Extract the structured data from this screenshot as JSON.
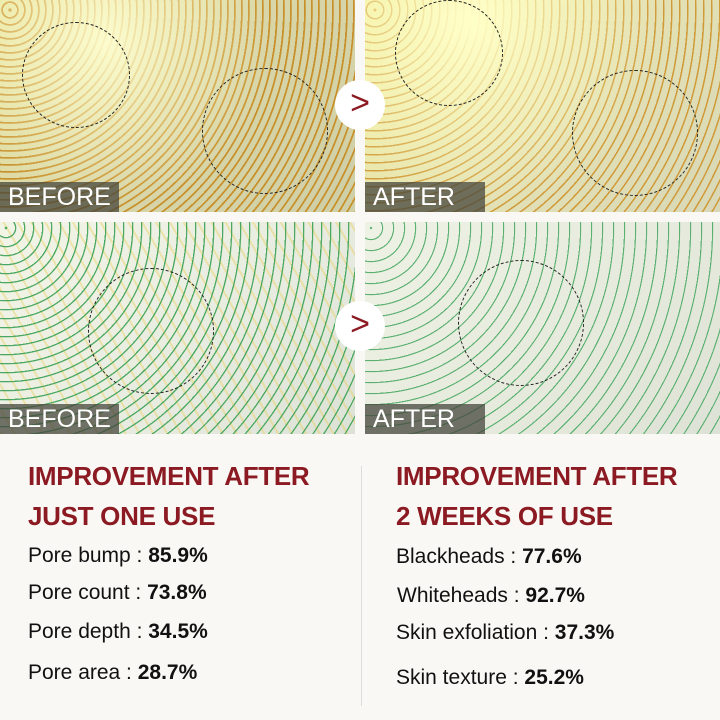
{
  "panels": [
    {
      "label": "BEFORE"
    },
    {
      "label": "AFTER"
    },
    {
      "label": "BEFORE"
    },
    {
      "label": "AFTER"
    }
  ],
  "arrow_glyph": ">",
  "accent_color": "#8b1a22",
  "left": {
    "heading_line1": "IMPROVEMENT AFTER",
    "heading_line2": "JUST ONE USE",
    "stats": [
      {
        "label": "Pore bump : ",
        "value": "85.9%"
      },
      {
        "label": "Pore count : ",
        "value": "73.8%"
      },
      {
        "label": "Pore depth : ",
        "value": "34.5%"
      },
      {
        "label": "Pore area : ",
        "value": "28.7%"
      }
    ]
  },
  "right": {
    "heading_line1": "IMPROVEMENT AFTER",
    "heading_line2": "2 WEEKS OF USE",
    "stats": [
      {
        "label": "Blackheads : ",
        "value": "77.6%"
      },
      {
        "label": "Whiteheads : ",
        "value": "92.7%"
      },
      {
        "label": "Skin exfoliation : ",
        "value": "37.3%"
      },
      {
        "label": "Skin texture : ",
        "value": "25.2%"
      }
    ]
  }
}
